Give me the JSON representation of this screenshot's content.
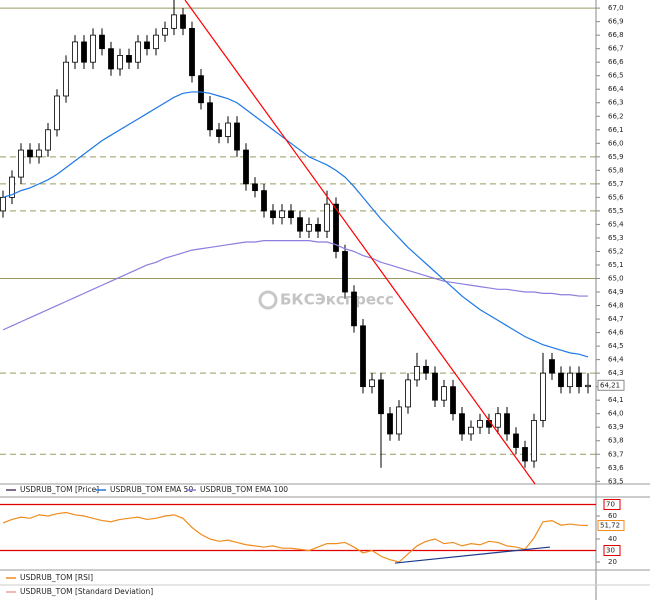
{
  "chart_data": [
    {
      "type": "candlestick",
      "watermark": "БКСЭкспресс",
      "ylim": [
        63.48,
        67.06
      ],
      "yticks": [
        {
          "value": 63.5,
          "label": "63,5"
        },
        {
          "value": 63.6,
          "label": "63,6"
        },
        {
          "value": 63.7,
          "label": "63,7"
        },
        {
          "value": 63.8,
          "label": "63,8"
        },
        {
          "value": 63.9,
          "label": "63,9"
        },
        {
          "value": 64.0,
          "label": "64,0"
        },
        {
          "value": 64.1,
          "label": "64,1"
        },
        {
          "value": 64.2,
          "label": "64,2"
        },
        {
          "value": 64.3,
          "label": "64,3"
        },
        {
          "value": 64.4,
          "label": "64,4"
        },
        {
          "value": 64.5,
          "label": "64,5"
        },
        {
          "value": 64.6,
          "label": "64,6"
        },
        {
          "value": 64.7,
          "label": "64,7"
        },
        {
          "value": 64.8,
          "label": "64,8"
        },
        {
          "value": 64.9,
          "label": "64,9"
        },
        {
          "value": 65.0,
          "label": "65,0"
        },
        {
          "value": 65.1,
          "label": "65,1"
        },
        {
          "value": 65.2,
          "label": "65,2"
        },
        {
          "value": 65.3,
          "label": "65,3"
        },
        {
          "value": 65.4,
          "label": "65,4"
        },
        {
          "value": 65.5,
          "label": "65,5"
        },
        {
          "value": 65.6,
          "label": "65,6"
        },
        {
          "value": 65.7,
          "label": "65,7"
        },
        {
          "value": 65.8,
          "label": "65,8"
        },
        {
          "value": 65.9,
          "label": "65,9"
        },
        {
          "value": 66.0,
          "label": "66,0"
        },
        {
          "value": 66.1,
          "label": "66,1"
        },
        {
          "value": 66.2,
          "label": "66,2"
        },
        {
          "value": 66.3,
          "label": "66,3"
        },
        {
          "value": 66.4,
          "label": "66,4"
        },
        {
          "value": 66.5,
          "label": "66,5"
        },
        {
          "value": 66.6,
          "label": "66,6"
        },
        {
          "value": 66.7,
          "label": "66,7"
        },
        {
          "value": 66.8,
          "label": "66,8"
        },
        {
          "value": 66.9,
          "label": "66,9"
        },
        {
          "value": 67.0,
          "label": "67,0"
        }
      ],
      "level_color": "#9a9a60",
      "levels": [
        {
          "value": 67.0,
          "style": "solid"
        },
        {
          "value": 65.9,
          "style": "dashed"
        },
        {
          "value": 65.7,
          "style": "dashed"
        },
        {
          "value": 65.5,
          "style": "dashed"
        },
        {
          "value": 65.0,
          "style": "solid"
        },
        {
          "value": 64.3,
          "style": "dashed"
        },
        {
          "value": 63.7,
          "style": "dashed"
        }
      ],
      "trendline": {
        "color": "#ff0000",
        "values": [
          67.06,
          63.48
        ]
      },
      "current_value": {
        "value": 64.21,
        "label": "64,21"
      },
      "series": [
        {
          "name": "USDRUB_TOM [Price]",
          "color": "#5a3a6a",
          "up_color": "#ffffff",
          "down_color": "#000000",
          "open": [
            65.5,
            65.6,
            65.75,
            65.95,
            65.9,
            65.95,
            66.1,
            66.35,
            66.6,
            66.75,
            66.6,
            66.8,
            66.7,
            66.55,
            66.65,
            66.6,
            66.75,
            66.7,
            66.8,
            66.85,
            66.95,
            66.85,
            66.5,
            66.3,
            66.1,
            66.05,
            66.15,
            65.95,
            65.7,
            65.65,
            65.5,
            65.45,
            65.5,
            65.45,
            65.35,
            65.4,
            65.35,
            65.55,
            65.2,
            64.9,
            64.65,
            64.2,
            64.25,
            64.0,
            63.85,
            64.05,
            64.25,
            64.35,
            64.3,
            64.1,
            64.2,
            64.0,
            63.85,
            63.9,
            63.95,
            63.9,
            64.0,
            63.85,
            63.75,
            63.65,
            63.95,
            64.4,
            64.3,
            64.2,
            64.3,
            64.2
          ],
          "high": [
            65.65,
            65.8,
            66.0,
            66.0,
            66.0,
            66.15,
            66.4,
            66.65,
            66.8,
            66.8,
            66.85,
            66.85,
            66.75,
            66.7,
            66.7,
            66.8,
            66.8,
            66.85,
            66.9,
            67.1,
            67.0,
            66.9,
            66.55,
            66.35,
            66.15,
            66.2,
            66.2,
            66.0,
            65.75,
            65.7,
            65.55,
            65.55,
            65.55,
            65.5,
            65.45,
            65.45,
            65.65,
            65.6,
            65.25,
            64.95,
            64.7,
            64.3,
            64.3,
            64.05,
            64.1,
            64.3,
            64.45,
            64.4,
            64.35,
            64.25,
            64.25,
            64.05,
            63.95,
            64.0,
            64.0,
            64.05,
            64.05,
            63.9,
            63.8,
            64.0,
            64.45,
            64.45,
            64.35,
            64.35,
            64.35,
            64.3
          ],
          "low": [
            65.45,
            65.55,
            65.7,
            65.85,
            65.85,
            65.9,
            66.05,
            66.3,
            66.55,
            66.55,
            66.55,
            66.65,
            66.5,
            66.5,
            66.55,
            66.55,
            66.65,
            66.65,
            66.75,
            66.8,
            66.8,
            66.45,
            66.25,
            66.05,
            66.0,
            66.0,
            65.9,
            65.65,
            65.6,
            65.45,
            65.4,
            65.4,
            65.4,
            65.3,
            65.3,
            65.3,
            65.3,
            65.15,
            64.85,
            64.6,
            64.15,
            64.15,
            63.6,
            63.8,
            63.8,
            64.0,
            64.2,
            64.25,
            64.05,
            64.05,
            63.95,
            63.8,
            63.8,
            63.85,
            63.85,
            63.85,
            63.8,
            63.7,
            63.6,
            63.6,
            63.9,
            64.25,
            64.15,
            64.15,
            64.15,
            64.15
          ],
          "close": [
            65.6,
            65.75,
            65.95,
            65.9,
            65.95,
            66.1,
            66.35,
            66.6,
            66.75,
            66.6,
            66.8,
            66.7,
            66.55,
            66.65,
            66.6,
            66.75,
            66.7,
            66.8,
            66.85,
            66.95,
            66.85,
            66.5,
            66.3,
            66.1,
            66.05,
            66.15,
            65.95,
            65.7,
            65.65,
            65.5,
            65.45,
            65.5,
            65.45,
            65.35,
            65.4,
            65.35,
            65.55,
            65.2,
            64.9,
            64.65,
            64.2,
            64.25,
            64.0,
            63.85,
            64.05,
            64.25,
            64.35,
            64.3,
            64.1,
            64.2,
            64.0,
            63.85,
            63.9,
            63.95,
            63.9,
            64.0,
            63.85,
            63.75,
            63.65,
            63.95,
            64.3,
            64.3,
            64.2,
            64.3,
            64.2,
            64.21
          ]
        },
        {
          "name": "USDRUB_TOM EMA 50",
          "color": "#1e78e6",
          "values": [
            65.6,
            65.62,
            65.65,
            65.67,
            65.7,
            65.73,
            65.77,
            65.82,
            65.87,
            65.92,
            65.97,
            66.02,
            66.06,
            66.1,
            66.14,
            66.18,
            66.22,
            66.26,
            66.3,
            66.34,
            66.37,
            66.38,
            66.38,
            66.37,
            66.35,
            66.33,
            66.3,
            66.25,
            66.2,
            66.15,
            66.1,
            66.05,
            66.0,
            65.95,
            65.9,
            65.87,
            65.84,
            65.8,
            65.75,
            65.68,
            65.6,
            65.52,
            65.44,
            65.37,
            65.3,
            65.23,
            65.17,
            65.11,
            65.05,
            64.99,
            64.93,
            64.87,
            64.82,
            64.77,
            64.73,
            64.69,
            64.65,
            64.61,
            64.57,
            64.54,
            64.51,
            64.49,
            64.47,
            64.45,
            64.44,
            64.42
          ]
        },
        {
          "name": "USDRUB_TOM EMA 100",
          "color": "#8a7ee0",
          "values": [
            64.62,
            64.65,
            64.68,
            64.71,
            64.74,
            64.77,
            64.8,
            64.83,
            64.86,
            64.89,
            64.92,
            64.95,
            64.98,
            65.01,
            65.04,
            65.07,
            65.1,
            65.12,
            65.15,
            65.17,
            65.19,
            65.21,
            65.22,
            65.23,
            65.24,
            65.25,
            65.26,
            65.27,
            65.27,
            65.28,
            65.28,
            65.28,
            65.28,
            65.28,
            65.28,
            65.27,
            65.27,
            65.25,
            65.22,
            65.2,
            65.17,
            65.15,
            65.12,
            65.1,
            65.08,
            65.06,
            65.04,
            65.02,
            65.0,
            64.98,
            64.97,
            64.96,
            64.95,
            64.94,
            64.93,
            64.92,
            64.92,
            64.91,
            64.9,
            64.9,
            64.89,
            64.89,
            64.88,
            64.88,
            64.87,
            64.87
          ]
        }
      ]
    },
    {
      "type": "line",
      "ylim": [
        14.8,
        73.9
      ],
      "yticks": [
        20,
        40,
        60
      ],
      "level_color": "#e00000",
      "levels": [
        {
          "value": 70,
          "style": "solid",
          "label": "70"
        },
        {
          "value": 30,
          "style": "solid",
          "label": "30"
        }
      ],
      "trendline": {
        "color": "#1a3a8a",
        "values": [
          19.1,
          33
        ]
      },
      "current_value": {
        "value": 51.72,
        "label": "51,72"
      },
      "series": [
        {
          "name": "USDRUB_TOM [RSI]",
          "color": "#f08c1e",
          "values": [
            54,
            57,
            59,
            58,
            61,
            60,
            62,
            63,
            61,
            60,
            58,
            56,
            55,
            57,
            58,
            59,
            57,
            58,
            60,
            61,
            58,
            50,
            44,
            40,
            38,
            39,
            37,
            35,
            34,
            33,
            34,
            32,
            32,
            31,
            30,
            33,
            36,
            36,
            37,
            33,
            28,
            30,
            25,
            22,
            20,
            27,
            34,
            38,
            40,
            36,
            37,
            34,
            36,
            35,
            38,
            37,
            34,
            33,
            31,
            41,
            55,
            56,
            52,
            53,
            52,
            51.72
          ]
        },
        {
          "name": "USDRUB_TOM [Standard Deviation]",
          "color": "#f0a0a0"
        }
      ]
    }
  ]
}
